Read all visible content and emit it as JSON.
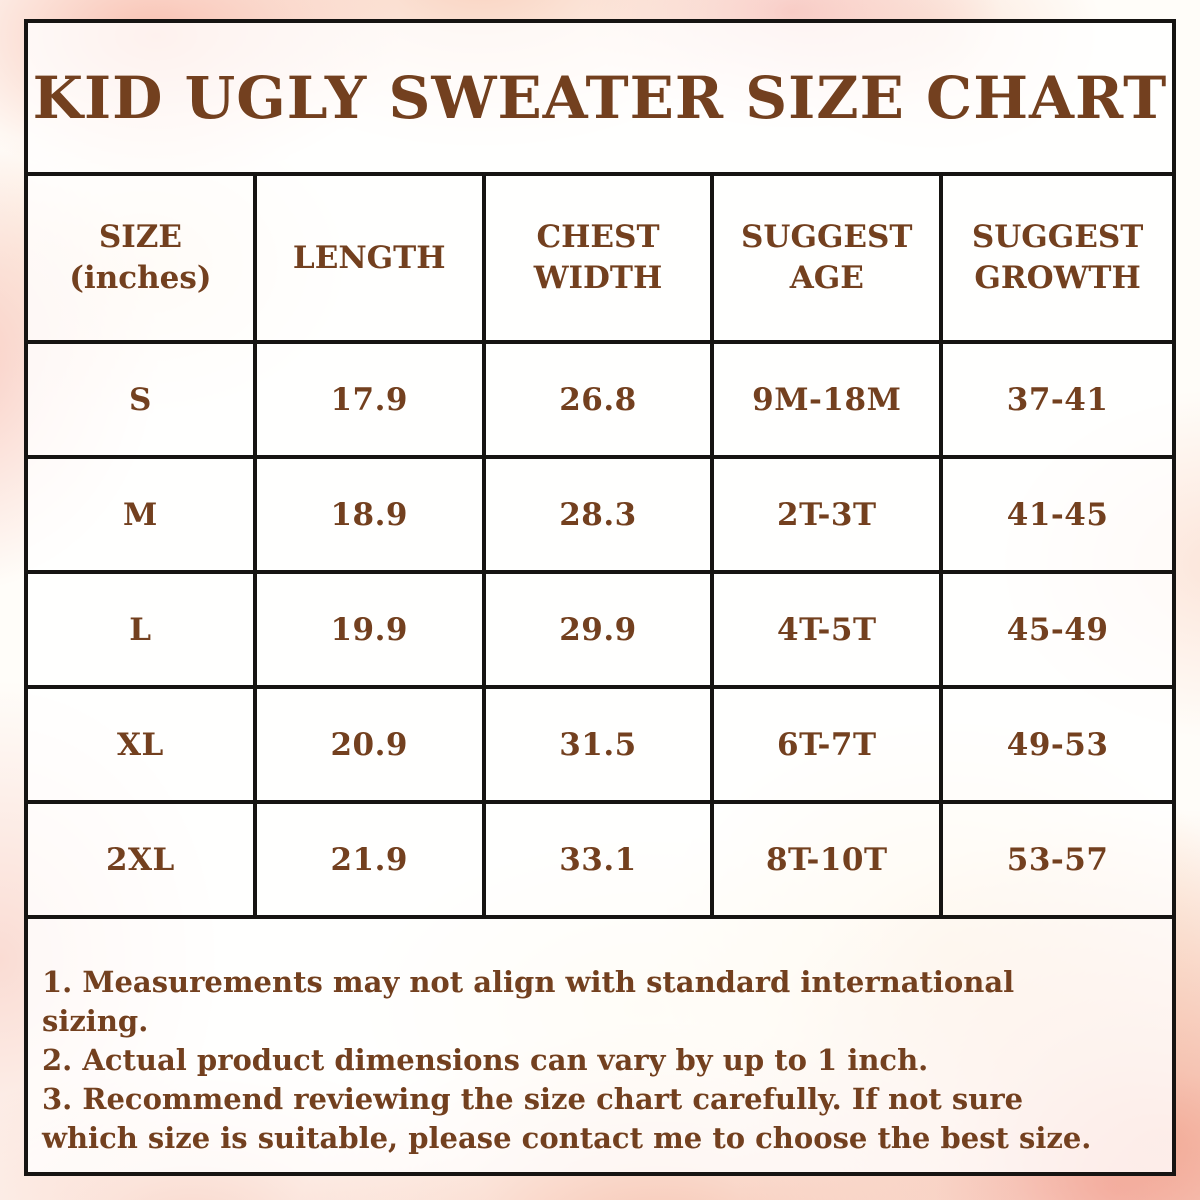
{
  "colors": {
    "text_brown": "#73401f",
    "border_black": "#161412",
    "wash_pink": "#f7c2b2",
    "wash_salmon": "#ee9276",
    "wash_peach": "#f8cfae",
    "wash_yellow": "#f9e8c0"
  },
  "title": "KID UGLY SWEATER SIZE CHART",
  "size_table": {
    "headers": [
      {
        "line1": "SIZE",
        "line2": "(inches)"
      },
      {
        "line1": "LENGTH",
        "line2": ""
      },
      {
        "line1": "CHEST",
        "line2": "WIDTH"
      },
      {
        "line1": "SUGGEST",
        "line2": "AGE"
      },
      {
        "line1": "SUGGEST",
        "line2": "GROWTH"
      }
    ],
    "rows": [
      {
        "size": "S",
        "length": "17.9",
        "chest_width": "26.8",
        "suggest_age": "9M-18M",
        "suggest_growth": "37-41"
      },
      {
        "size": "M",
        "length": "18.9",
        "chest_width": "28.3",
        "suggest_age": "2T-3T",
        "suggest_growth": "41-45"
      },
      {
        "size": "L",
        "length": "19.9",
        "chest_width": "29.9",
        "suggest_age": "4T-5T",
        "suggest_growth": "45-49"
      },
      {
        "size": "XL",
        "length": "20.9",
        "chest_width": "31.5",
        "suggest_age": "6T-7T",
        "suggest_growth": "49-53"
      },
      {
        "size": "2XL",
        "length": "21.9",
        "chest_width": "33.1",
        "suggest_age": "8T-10T",
        "suggest_growth": "53-57"
      }
    ]
  },
  "notes": [
    "1. Measurements may not align with standard international sizing.",
    "2. Actual product dimensions can vary by up to 1 inch.",
    "3. Recommend reviewing the size chart carefully. If not sure which size is suitable, please contact me to choose the best size."
  ],
  "chart_data": {
    "type": "table",
    "title": "KID UGLY SWEATER SIZE CHART",
    "units": "inches",
    "columns": [
      "SIZE (inches)",
      "LENGTH",
      "CHEST WIDTH",
      "SUGGEST AGE",
      "SUGGEST GROWTH"
    ],
    "rows": [
      [
        "S",
        17.9,
        26.8,
        "9M-18M",
        "37-41"
      ],
      [
        "M",
        18.9,
        28.3,
        "2T-3T",
        "41-45"
      ],
      [
        "L",
        19.9,
        29.9,
        "4T-5T",
        "45-49"
      ],
      [
        "XL",
        20.9,
        31.5,
        "6T-7T",
        "49-53"
      ],
      [
        "2XL",
        21.9,
        33.1,
        "8T-10T",
        "53-57"
      ]
    ],
    "notes": [
      "1. Measurements may not align with standard international sizing.",
      "2. Actual product dimensions can vary by up to 1 inch.",
      "3. Recommend reviewing the size chart carefully. If not sure which size is suitable, please contact me to choose the best size."
    ]
  }
}
